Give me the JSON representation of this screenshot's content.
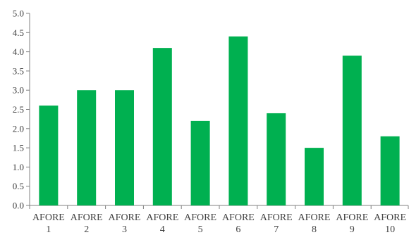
{
  "chart_data": {
    "type": "bar",
    "categories": [
      [
        "AFORE",
        "1"
      ],
      [
        "AFORE",
        "2"
      ],
      [
        "AFORE",
        "3"
      ],
      [
        "AFORE",
        "4"
      ],
      [
        "AFORE",
        "5"
      ],
      [
        "AFORE",
        "6"
      ],
      [
        "AFORE",
        "7"
      ],
      [
        "AFORE",
        "8"
      ],
      [
        "AFORE",
        "9"
      ],
      [
        "AFORE",
        "10"
      ]
    ],
    "values": [
      2.6,
      3.0,
      3.0,
      4.1,
      2.2,
      4.4,
      2.4,
      1.5,
      3.9,
      1.8
    ],
    "yticks": [
      "0.0",
      "0.5",
      "1.0",
      "1.5",
      "2.0",
      "2.5",
      "3.0",
      "3.5",
      "4.0",
      "4.5",
      "5.0"
    ],
    "ylim": [
      0,
      5
    ],
    "title": "",
    "xlabel": "",
    "ylabel": "",
    "grid": false,
    "legend": "none",
    "bar_color": "#00b050",
    "axis_color": "#808080"
  }
}
